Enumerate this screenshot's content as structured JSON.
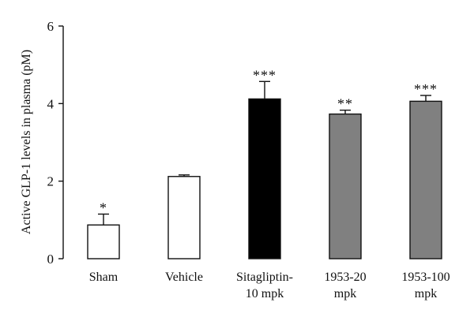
{
  "chart_data": {
    "type": "bar",
    "title": "",
    "xlabel": "",
    "ylabel": "Active GLP-1 levels in plasma (pM)",
    "ylim": [
      0,
      6
    ],
    "yticks": [
      0,
      2,
      4,
      6
    ],
    "grid": false,
    "categories": [
      [
        "Sham"
      ],
      [
        "Vehicle"
      ],
      [
        "Sitagliptin-",
        "10 mpk"
      ],
      [
        "1953-20",
        "mpk"
      ],
      [
        "1953-100",
        "mpk"
      ]
    ],
    "values": [
      0.87,
      2.12,
      4.12,
      3.73,
      4.06
    ],
    "errors": [
      0.28,
      0.04,
      0.45,
      0.1,
      0.15
    ],
    "significance": [
      "*",
      "",
      "***",
      "**",
      "***"
    ],
    "bar_colors": [
      "#ffffff",
      "#ffffff",
      "#000000",
      "#808080",
      "#808080"
    ]
  }
}
